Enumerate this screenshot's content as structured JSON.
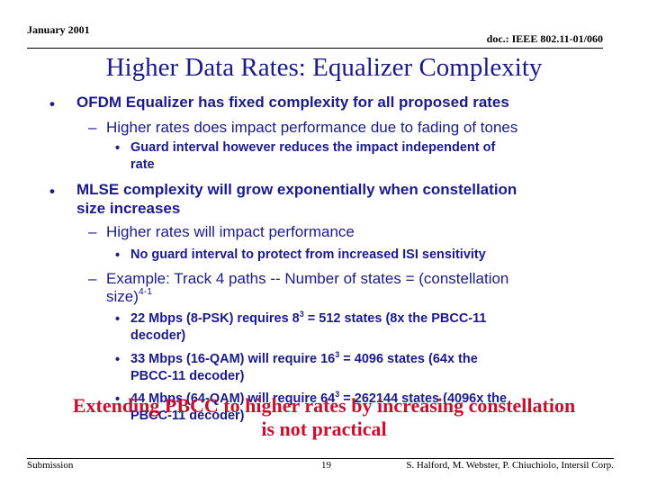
{
  "header": {
    "date": "January 2001",
    "doc": "doc.: IEEE 802.11-01/060"
  },
  "title": "Higher Data Rates: Equalizer Complexity",
  "bullets": {
    "b1": "OFDM Equalizer has fixed complexity for all proposed rates",
    "b1_sub1": "Higher rates does impact performance due to fading of tones",
    "b1_sub1_a_line1": "Guard interval however reduces the impact independent of",
    "b1_sub1_a_line2": "rate",
    "b2_line1": "MLSE complexity will grow exponentially when constellation",
    "b2_line2": "size increases",
    "b2_sub1": "Higher rates will impact performance",
    "b2_sub1_a": "No guard interval to protect from increased ISI sensitivity",
    "b2_sub2_line1": "Example:  Track 4 paths -- Number of states = (constellation",
    "b2_sub2_line2_base": "size)",
    "b2_sub2_line2_sup": "4-1",
    "e1_pre": "22 Mbps (8-PSK) requires 8",
    "e1_sup": "3",
    "e1_post": " = 512 states (8x the PBCC-11",
    "e1_line2": "decoder)",
    "e2_pre": "33 Mbps (16-QAM) will require 16",
    "e2_sup": "3",
    "e2_post": " = 4096 states (64x the",
    "e2_line2": "PBCC-11 decoder)",
    "e3_pre": "44 Mbps (64-QAM) will require 64",
    "e3_sup": "3",
    "e3_post": " = 262144 states (4096x the",
    "e3_line2": "PBCC-11 decoder)"
  },
  "bullet_glyphs": {
    "l1": "•",
    "l2": "–",
    "l3": "•"
  },
  "conclusion": {
    "line1": "Extending PBCC to higher rates by increasing constellation",
    "line2": "is not practical"
  },
  "footer": {
    "left": "Submission",
    "page": "19",
    "authors": "S. Halford, M. Webster, P. Chiuchiolo, Intersil Corp."
  },
  "colors": {
    "title": "#1a1a8c",
    "body": "#1a1a8c",
    "conclusion": "#c8102e"
  }
}
